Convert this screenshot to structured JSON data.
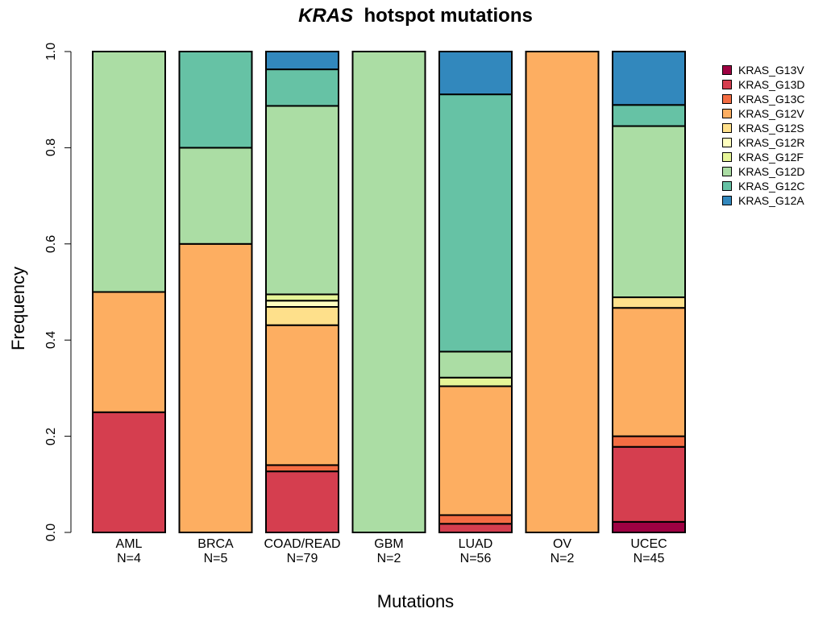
{
  "chart_data": {
    "type": "bar",
    "stacked": true,
    "title_gene": "KRAS",
    "title_rest": "hotspot mutations",
    "xlabel": "Mutations",
    "ylabel": "Frequency",
    "ylim": [
      0,
      1
    ],
    "yticks": [
      "0.0",
      "0.2",
      "0.4",
      "0.6",
      "0.8",
      "1.0"
    ],
    "grid": false,
    "legend_position": "top-right",
    "categories": [
      "AML",
      "BRCA",
      "COAD/READ",
      "GBM",
      "LUAD",
      "OV",
      "UCEC"
    ],
    "category_counts": [
      "N=4",
      "N=5",
      "N=79",
      "N=2",
      "N=56",
      "N=2",
      "N=45"
    ],
    "series": [
      {
        "name": "KRAS_G13V",
        "color": "#9E0142",
        "values": [
          0,
          0,
          0,
          0,
          0,
          0,
          0.022
        ]
      },
      {
        "name": "KRAS_G13D",
        "color": "#D53E4F",
        "values": [
          0.25,
          0,
          0.127,
          0,
          0.018,
          0,
          0.156
        ]
      },
      {
        "name": "KRAS_G13C",
        "color": "#F46D43",
        "values": [
          0,
          0,
          0.013,
          0,
          0.018,
          0,
          0.022
        ]
      },
      {
        "name": "KRAS_G12V",
        "color": "#FDAE61",
        "values": [
          0.25,
          0.6,
          0.291,
          0,
          0.268,
          1.0,
          0.267
        ]
      },
      {
        "name": "KRAS_G12S",
        "color": "#FEE08B",
        "values": [
          0,
          0,
          0.038,
          0,
          0,
          0,
          0.022
        ]
      },
      {
        "name": "KRAS_G12R",
        "color": "#FFFFBF",
        "values": [
          0,
          0,
          0.013,
          0,
          0,
          0,
          0
        ]
      },
      {
        "name": "KRAS_G12F",
        "color": "#E6F598",
        "values": [
          0,
          0,
          0.013,
          0,
          0.018,
          0,
          0
        ]
      },
      {
        "name": "KRAS_G12D",
        "color": "#ABDDA4",
        "values": [
          0.5,
          0.2,
          0.392,
          1.0,
          0.054,
          0,
          0.356
        ]
      },
      {
        "name": "KRAS_G12C",
        "color": "#66C2A5",
        "values": [
          0,
          0.2,
          0.076,
          0,
          0.535,
          0,
          0.044
        ]
      },
      {
        "name": "KRAS_G12A",
        "color": "#3288BD",
        "values": [
          0,
          0,
          0.037,
          0,
          0.089,
          0,
          0.111
        ]
      }
    ]
  }
}
